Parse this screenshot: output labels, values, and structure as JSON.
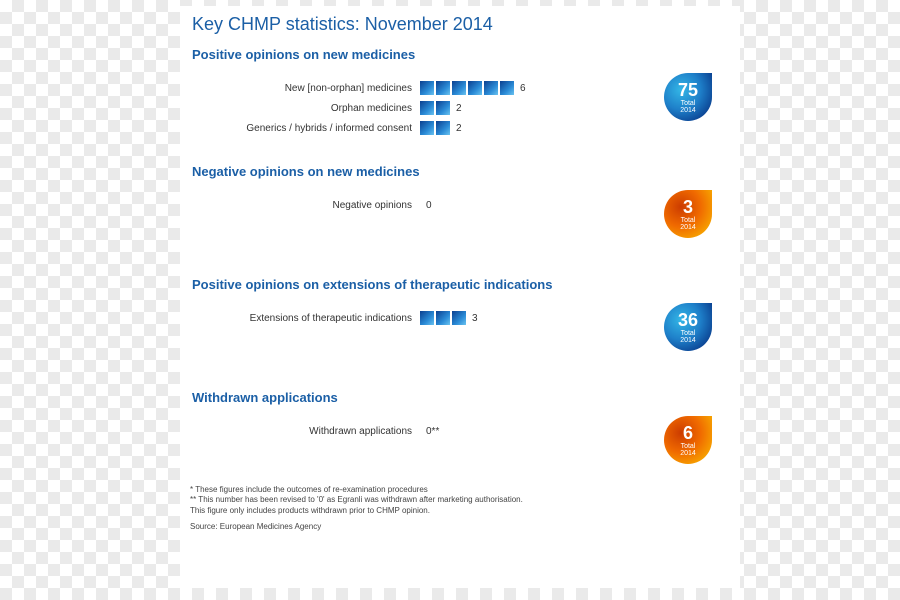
{
  "title": "Key CHMP statistics: November 2014",
  "block_gradient": [
    "#0a3f8f",
    "#2a8ad6",
    "#6ac3f0"
  ],
  "badge_blue_gradient": [
    "#0a3f8f",
    "#1e7fc9",
    "#33b6e6"
  ],
  "badge_orange_gradient": [
    "#f7a600",
    "#f06a00",
    "#cc3c00"
  ],
  "badge_sub": "Total",
  "badge_year": "2014",
  "sections": [
    {
      "title": "Positive opinions on new medicines",
      "rows": [
        {
          "label": "New [non-orphan] medicines",
          "value": 6,
          "display": "6"
        },
        {
          "label": "Orphan medicines",
          "value": 2,
          "display": "2"
        },
        {
          "label": "Generics / hybrids / informed consent",
          "value": 2,
          "display": "2"
        }
      ],
      "badge": {
        "style": "blue",
        "value": "75"
      }
    },
    {
      "title": "Negative opinions on new medicines",
      "rows": [
        {
          "label": "Negative opinions",
          "value": 0,
          "display": "0"
        }
      ],
      "badge": {
        "style": "orange",
        "value": "3"
      }
    },
    {
      "title": "Positive opinions on extensions of therapeutic indications",
      "rows": [
        {
          "label": "Extensions of therapeutic indications",
          "value": 3,
          "display": "3"
        }
      ],
      "badge": {
        "style": "blue",
        "value": "36"
      }
    },
    {
      "title": "Withdrawn applications",
      "rows": [
        {
          "label": "Withdrawn applications",
          "value": 0,
          "display": "0**"
        }
      ],
      "badge": {
        "style": "orange",
        "value": "6"
      }
    }
  ],
  "footnotes": {
    "l1": "* These figures include the outcomes of re-examination procedures",
    "l2": "** This number has been revised to '0' as Egranli was withdrawn after marketing authorisation.",
    "l3": "This figure only includes products withdrawn prior to CHMP opinion.",
    "source": "Source: European Medicines Agency"
  }
}
